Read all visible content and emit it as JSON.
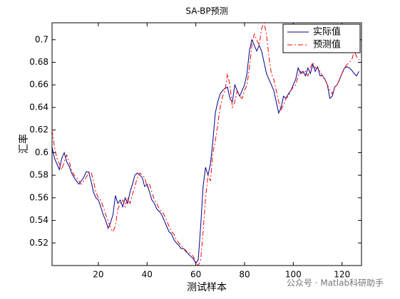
{
  "chart_data": {
    "type": "line",
    "title": "SA-BP预测",
    "xlabel": "测试样本",
    "ylabel": "汇率",
    "x": [
      1,
      2,
      3,
      4,
      5,
      6,
      7,
      8,
      9,
      10,
      11,
      12,
      13,
      14,
      15,
      16,
      17,
      18,
      19,
      20,
      21,
      22,
      23,
      24,
      25,
      26,
      27,
      28,
      29,
      30,
      31,
      32,
      33,
      34,
      35,
      36,
      37,
      38,
      39,
      40,
      41,
      42,
      43,
      44,
      45,
      46,
      47,
      48,
      49,
      50,
      51,
      52,
      53,
      54,
      55,
      56,
      57,
      58,
      59,
      60,
      61,
      62,
      63,
      64,
      65,
      66,
      67,
      68,
      69,
      70,
      71,
      72,
      73,
      74,
      75,
      76,
      77,
      78,
      79,
      80,
      81,
      82,
      83,
      84,
      85,
      86,
      87,
      88,
      89,
      90,
      91,
      92,
      93,
      94,
      95,
      96,
      97,
      98,
      99,
      100,
      101,
      102,
      103,
      104,
      105,
      106,
      107,
      108,
      109,
      110,
      111,
      112,
      113,
      114,
      115,
      116,
      117,
      118,
      119,
      120,
      121,
      122,
      123,
      124,
      125,
      126,
      127
    ],
    "series": [
      {
        "name": "实际值",
        "color": "#00008b",
        "dash": "solid",
        "values": [
          0.605,
          0.595,
          0.59,
          0.585,
          0.595,
          0.6,
          0.592,
          0.588,
          0.582,
          0.578,
          0.575,
          0.572,
          0.575,
          0.578,
          0.583,
          0.583,
          0.575,
          0.565,
          0.56,
          0.558,
          0.552,
          0.545,
          0.54,
          0.533,
          0.538,
          0.545,
          0.562,
          0.555,
          0.558,
          0.552,
          0.56,
          0.555,
          0.565,
          0.572,
          0.58,
          0.582,
          0.58,
          0.578,
          0.57,
          0.572,
          0.565,
          0.558,
          0.555,
          0.55,
          0.548,
          0.545,
          0.54,
          0.535,
          0.53,
          0.528,
          0.523,
          0.52,
          0.518,
          0.515,
          0.515,
          0.513,
          0.51,
          0.508,
          0.506,
          0.502,
          0.505,
          0.535,
          0.57,
          0.587,
          0.58,
          0.59,
          0.61,
          0.635,
          0.645,
          0.652,
          0.655,
          0.657,
          0.658,
          0.648,
          0.645,
          0.66,
          0.655,
          0.65,
          0.655,
          0.66,
          0.67,
          0.69,
          0.7,
          0.695,
          0.69,
          0.695,
          0.69,
          0.68,
          0.67,
          0.665,
          0.66,
          0.655,
          0.645,
          0.635,
          0.64,
          0.65,
          0.648,
          0.652,
          0.655,
          0.66,
          0.665,
          0.675,
          0.67,
          0.672,
          0.668,
          0.675,
          0.67,
          0.678,
          0.672,
          0.676,
          0.668,
          0.668,
          0.665,
          0.66,
          0.648,
          0.65,
          0.658,
          0.66,
          0.665,
          0.67,
          0.675,
          0.676,
          0.675,
          0.673,
          0.67,
          0.668,
          0.672
        ]
      },
      {
        "name": "预测值",
        "color": "#ff0000",
        "dash": "dashdot",
        "values": [
          0.62,
          0.605,
          0.595,
          0.59,
          0.585,
          0.592,
          0.598,
          0.592,
          0.585,
          0.58,
          0.578,
          0.575,
          0.572,
          0.575,
          0.578,
          0.582,
          0.583,
          0.575,
          0.565,
          0.56,
          0.558,
          0.552,
          0.545,
          0.54,
          0.533,
          0.53,
          0.535,
          0.55,
          0.555,
          0.558,
          0.552,
          0.56,
          0.555,
          0.563,
          0.57,
          0.578,
          0.582,
          0.58,
          0.578,
          0.57,
          0.572,
          0.565,
          0.558,
          0.555,
          0.55,
          0.548,
          0.545,
          0.54,
          0.535,
          0.53,
          0.528,
          0.523,
          0.52,
          0.518,
          0.515,
          0.512,
          0.512,
          0.51,
          0.508,
          0.503,
          0.5,
          0.505,
          0.53,
          0.56,
          0.58,
          0.575,
          0.6,
          0.61,
          0.625,
          0.64,
          0.65,
          0.655,
          0.67,
          0.66,
          0.64,
          0.645,
          0.655,
          0.65,
          0.648,
          0.655,
          0.66,
          0.675,
          0.695,
          0.705,
          0.7,
          0.695,
          0.71,
          0.715,
          0.705,
          0.685,
          0.67,
          0.665,
          0.655,
          0.645,
          0.638,
          0.642,
          0.648,
          0.65,
          0.655,
          0.658,
          0.66,
          0.668,
          0.672,
          0.67,
          0.672,
          0.668,
          0.675,
          0.68,
          0.675,
          0.675,
          0.672,
          0.668,
          0.665,
          0.66,
          0.655,
          0.652,
          0.658,
          0.66,
          0.665,
          0.67,
          0.675,
          0.678,
          0.68,
          0.682,
          0.69,
          0.685,
          0.682
        ]
      }
    ],
    "xlim": [
      1,
      128
    ],
    "ylim": [
      0.5,
      0.715
    ],
    "xticks": [
      20,
      40,
      60,
      80,
      100,
      120
    ],
    "yticks": [
      0.52,
      0.54,
      0.56,
      0.58,
      0.6,
      0.62,
      0.64,
      0.66,
      0.68,
      0.7
    ],
    "grid": false,
    "legend": "northeast"
  },
  "watermark": "公众号 · Matlab科研助手"
}
